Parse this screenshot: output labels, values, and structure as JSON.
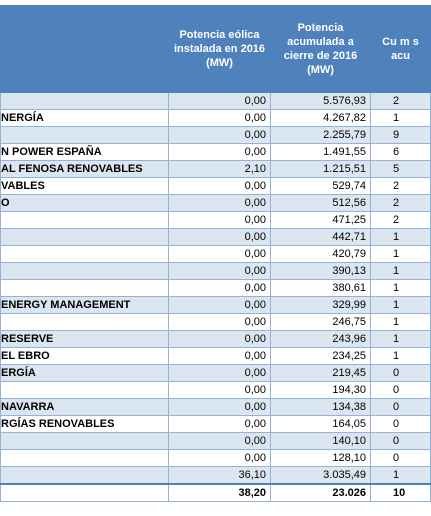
{
  "table": {
    "header": [
      "",
      "Potencia eólica instalada en 2016 (MW)",
      "Potencia acumulada a cierre de 2016 (MW)",
      "Cu m s acu"
    ],
    "rows": [
      [
        "",
        "0,00",
        "5.576,93",
        "2"
      ],
      [
        "NERGÍA",
        "0,00",
        "4.267,82",
        "1"
      ],
      [
        "",
        "0,00",
        "2.255,79",
        "9"
      ],
      [
        "N POWER ESPAÑA",
        "0,00",
        "1.491,55",
        "6"
      ],
      [
        "AL FENOSA RENOVABLES",
        "2,10",
        "1.215,51",
        "5"
      ],
      [
        "VABLES",
        "0,00",
        "529,74",
        "2"
      ],
      [
        "O",
        "0,00",
        "512,56",
        "2"
      ],
      [
        "",
        "0,00",
        "471,25",
        "2"
      ],
      [
        "",
        "0,00",
        "442,71",
        "1"
      ],
      [
        "",
        "0,00",
        "420,79",
        "1"
      ],
      [
        "",
        "0,00",
        "390,13",
        "1"
      ],
      [
        "",
        "0,00",
        "380,61",
        "1"
      ],
      [
        "ENERGY MANAGEMENT",
        "0,00",
        "329,99",
        "1"
      ],
      [
        "",
        "0,00",
        "246,75",
        "1"
      ],
      [
        "RESERVE",
        "0,00",
        "243,96",
        "1"
      ],
      [
        "EL EBRO",
        "0,00",
        "234,25",
        "1"
      ],
      [
        "ERGÍA",
        "0,00",
        "219,45",
        "0"
      ],
      [
        "",
        "0,00",
        "194,30",
        "0"
      ],
      [
        "NAVARRA",
        "0,00",
        "134,38",
        "0"
      ],
      [
        "RGÍAS RENOVABLES",
        "0,00",
        "164,05",
        "0"
      ],
      [
        "",
        "0,00",
        "140,10",
        "0"
      ],
      [
        "",
        "0,00",
        "128,10",
        "0"
      ],
      [
        "",
        "36,10",
        "3.035,49",
        "1"
      ]
    ],
    "total": [
      "",
      "38,20",
      "23.026",
      "10"
    ]
  }
}
